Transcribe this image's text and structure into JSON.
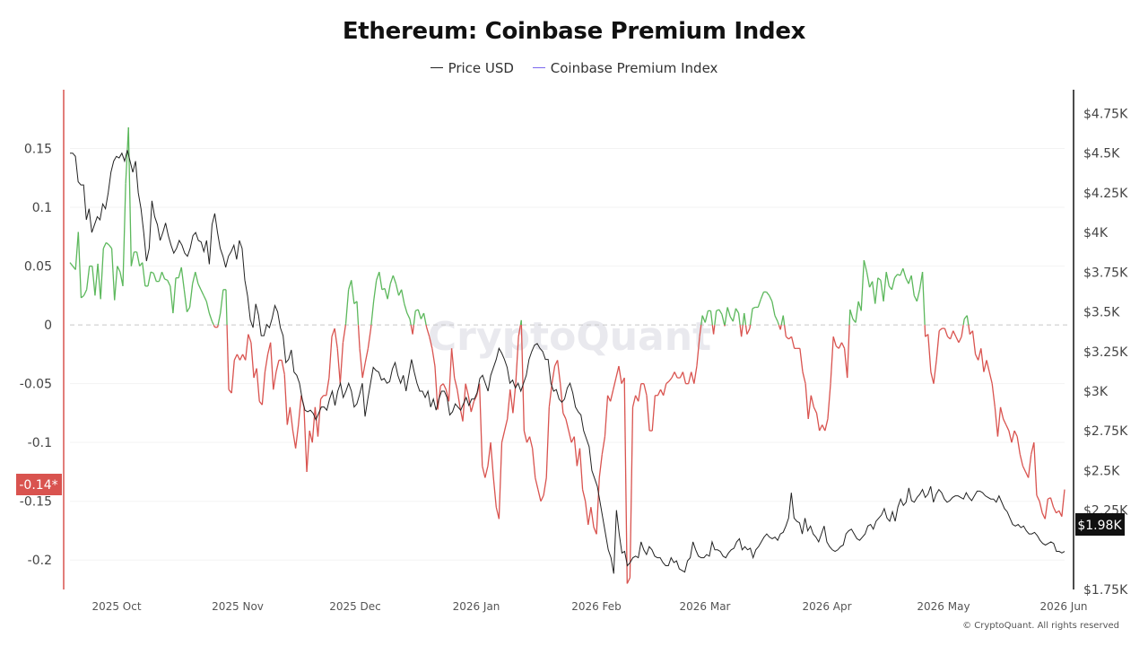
{
  "chart_data": {
    "type": "line",
    "title": "Ethereum: Coinbase Premium Index",
    "legend": [
      {
        "name": "Price USD",
        "color": "#222222"
      },
      {
        "name": "Coinbase Premium Index",
        "color": "#7b68ee"
      }
    ],
    "left_axis": {
      "ticks": [
        "0.15",
        "0.1",
        "0.05",
        "0",
        "-0.05",
        "-0.1",
        "-0.15",
        "-0.2"
      ],
      "tick_values": [
        0.15,
        0.1,
        0.05,
        0,
        -0.05,
        -0.1,
        -0.15,
        -0.2
      ],
      "range": [
        -0.225,
        0.2
      ]
    },
    "right_axis": {
      "ticks": [
        "$4.75K",
        "$4.5K",
        "$4.25K",
        "$4K",
        "$3.75K",
        "$3.5K",
        "$3.25K",
        "$3K",
        "$2.75K",
        "$2.5K",
        "$2.25K",
        "$1.75K"
      ],
      "tick_values": [
        4750,
        4500,
        4250,
        4000,
        3750,
        3500,
        3250,
        3000,
        2750,
        2500,
        2250,
        1750
      ],
      "range": [
        1750,
        4900
      ]
    },
    "x_axis": {
      "labels": [
        "2025 Oct",
        "2025 Nov",
        "2025 Dec",
        "2026 Jan",
        "2026 Feb",
        "2026 Mar",
        "2026 Apr",
        "2026 May",
        "2026 Jun"
      ]
    },
    "current_premium_label": "-0.14*",
    "current_price_label": "$1.98K",
    "colors": {
      "positive": "#5cb85c",
      "negative": "#d9534f",
      "price": "#222222",
      "zero_line": "#c8c8c8"
    },
    "series": [
      {
        "name": "Coinbase Premium Index",
        "values": [
          0.053,
          0.05,
          0.047,
          0.079,
          0.023,
          0.025,
          0.03,
          0.05,
          0.05,
          0.025,
          0.052,
          0.022,
          0.065,
          0.07,
          0.068,
          0.065,
          0.021,
          0.05,
          0.045,
          0.033,
          0.12,
          0.168,
          0.05,
          0.062,
          0.062,
          0.05,
          0.053,
          0.033,
          0.033,
          0.045,
          0.044,
          0.037,
          0.037,
          0.045,
          0.039,
          0.038,
          0.033,
          0.01,
          0.04,
          0.04,
          0.049,
          0.03,
          0.011,
          0.015,
          0.035,
          0.045,
          0.035,
          0.03,
          0.025,
          0.02,
          0.01,
          0.003,
          -0.002,
          -0.002,
          0.01,
          0.03,
          0.03,
          -0.055,
          -0.058,
          -0.03,
          -0.025,
          -0.03,
          -0.025,
          -0.03,
          -0.008,
          -0.015,
          -0.045,
          -0.037,
          -0.065,
          -0.068,
          -0.04,
          -0.025,
          -0.015,
          -0.055,
          -0.04,
          -0.03,
          -0.03,
          -0.042,
          -0.085,
          -0.07,
          -0.09,
          -0.105,
          -0.085,
          -0.06,
          -0.07,
          -0.125,
          -0.09,
          -0.1,
          -0.07,
          -0.095,
          -0.063,
          -0.06,
          -0.06,
          -0.045,
          -0.01,
          -0.003,
          -0.02,
          -0.05,
          -0.015,
          0.001,
          0.03,
          0.038,
          0.018,
          0.02,
          -0.02,
          -0.045,
          -0.032,
          -0.02,
          -0.003,
          0.02,
          0.038,
          0.045,
          0.03,
          0.031,
          0.022,
          0.035,
          0.042,
          0.035,
          0.025,
          0.03,
          0.018,
          0.01,
          0.005,
          -0.008,
          0.012,
          0.013,
          0.005,
          0.01,
          -0.002,
          -0.01,
          -0.02,
          -0.035,
          -0.072,
          -0.052,
          -0.05,
          -0.055,
          -0.065,
          -0.02,
          -0.045,
          -0.055,
          -0.07,
          -0.082,
          -0.05,
          -0.06,
          -0.074,
          -0.065,
          -0.06,
          -0.05,
          -0.12,
          -0.13,
          -0.12,
          -0.1,
          -0.13,
          -0.155,
          -0.165,
          -0.1,
          -0.09,
          -0.08,
          -0.055,
          -0.075,
          -0.05,
          -0.01,
          0.004,
          -0.09,
          -0.1,
          -0.095,
          -0.105,
          -0.13,
          -0.14,
          -0.15,
          -0.145,
          -0.13,
          -0.07,
          -0.05,
          -0.035,
          -0.03,
          -0.05,
          -0.075,
          -0.08,
          -0.09,
          -0.1,
          -0.095,
          -0.12,
          -0.105,
          -0.14,
          -0.15,
          -0.17,
          -0.155,
          -0.172,
          -0.178,
          -0.13,
          -0.11,
          -0.095,
          -0.06,
          -0.065,
          -0.055,
          -0.045,
          -0.035,
          -0.05,
          -0.045,
          -0.22,
          -0.215,
          -0.07,
          -0.06,
          -0.065,
          -0.05,
          -0.05,
          -0.06,
          -0.09,
          -0.09,
          -0.06,
          -0.06,
          -0.055,
          -0.06,
          -0.05,
          -0.048,
          -0.045,
          -0.04,
          -0.045,
          -0.045,
          -0.04,
          -0.05,
          -0.05,
          -0.04,
          -0.05,
          -0.035,
          -0.01,
          0.008,
          0.002,
          0.012,
          0.012,
          -0.008,
          0.012,
          0.013,
          0.009,
          -0.001,
          0.015,
          0.007,
          0.003,
          0.014,
          0.01,
          -0.01,
          0.01,
          -0.008,
          -0.003,
          0.014,
          0.015,
          0.015,
          0.022,
          0.028,
          0.028,
          0.025,
          0.02,
          0.008,
          0.003,
          -0.004,
          0.008,
          -0.01,
          -0.012,
          -0.01,
          -0.02,
          -0.02,
          -0.02,
          -0.04,
          -0.05,
          -0.08,
          -0.06,
          -0.07,
          -0.075,
          -0.09,
          -0.085,
          -0.09,
          -0.08,
          -0.05,
          -0.01,
          -0.018,
          -0.02,
          -0.015,
          -0.02,
          -0.045,
          0.013,
          0.005,
          0.002,
          0.02,
          0.012,
          0.055,
          0.045,
          0.032,
          0.037,
          0.018,
          0.04,
          0.038,
          0.02,
          0.045,
          0.033,
          0.03,
          0.04,
          0.043,
          0.042,
          0.048,
          0.04,
          0.035,
          0.042,
          0.025,
          0.02,
          0.03,
          0.045,
          -0.01,
          -0.008,
          -0.04,
          -0.05,
          -0.03,
          -0.005,
          -0.003,
          -0.003,
          -0.01,
          -0.012,
          -0.005,
          -0.01,
          -0.015,
          -0.01,
          0.005,
          0.008,
          -0.008,
          -0.005,
          -0.025,
          -0.03,
          -0.02,
          -0.04,
          -0.03,
          -0.04,
          -0.05,
          -0.07,
          -0.095,
          -0.07,
          -0.08,
          -0.085,
          -0.09,
          -0.1,
          -0.09,
          -0.095,
          -0.11,
          -0.12,
          -0.125,
          -0.13,
          -0.11,
          -0.1,
          -0.145,
          -0.15,
          -0.16,
          -0.165,
          -0.148,
          -0.147,
          -0.155,
          -0.16,
          -0.158,
          -0.163,
          -0.14
        ]
      },
      {
        "name": "Price USD",
        "values": [
          4500,
          4500,
          4480,
          4320,
          4300,
          4300,
          4080,
          4150,
          4000,
          4050,
          4100,
          4080,
          4180,
          4150,
          4250,
          4380,
          4450,
          4480,
          4470,
          4500,
          4450,
          4520,
          4450,
          4380,
          4450,
          4250,
          4150,
          4000,
          3820,
          3900,
          4200,
          4100,
          4050,
          3950,
          4000,
          4060,
          3980,
          3920,
          3870,
          3900,
          3950,
          3920,
          3870,
          3850,
          3900,
          3980,
          4000,
          3950,
          3940,
          3880,
          3950,
          3800,
          4050,
          4120,
          4000,
          3900,
          3850,
          3780,
          3850,
          3880,
          3920,
          3830,
          3950,
          3900,
          3700,
          3600,
          3450,
          3400,
          3550,
          3480,
          3350,
          3350,
          3420,
          3400,
          3460,
          3540,
          3500,
          3400,
          3350,
          3180,
          3200,
          3260,
          3120,
          3100,
          3050,
          2950,
          2880,
          2870,
          2880,
          2860,
          2820,
          2860,
          2900,
          2900,
          2880,
          2950,
          3000,
          2910,
          3000,
          3050,
          2960,
          3000,
          3050,
          3000,
          2900,
          2920,
          2980,
          3050,
          2840,
          2950,
          3050,
          3150,
          3130,
          3120,
          3070,
          3080,
          3050,
          3060,
          3140,
          3180,
          3100,
          3050,
          3100,
          3000,
          3100,
          3200,
          3120,
          3050,
          3000,
          3000,
          2960,
          3000,
          2900,
          2950,
          2880,
          2950,
          3000,
          3000,
          2960,
          2850,
          2870,
          2920,
          2900,
          2880,
          2920,
          2960,
          2910,
          2950,
          2950,
          2990,
          3080,
          3100,
          3050,
          3000,
          3100,
          3150,
          3200,
          3270,
          3240,
          3200,
          3150,
          3050,
          3070,
          3020,
          3050,
          3000,
          3050,
          3100,
          3200,
          3250,
          3290,
          3300,
          3270,
          3250,
          3200,
          3200,
          3050,
          3000,
          3010,
          2950,
          2930,
          2950,
          3020,
          3050,
          2990,
          2900,
          2870,
          2850,
          2750,
          2700,
          2650,
          2500,
          2450,
          2400,
          2300,
          2200,
          2100,
          2000,
          1950,
          1850,
          2250,
          2100,
          1980,
          1990,
          1900,
          1920,
          1950,
          1960,
          1950,
          2050,
          2000,
          1970,
          2020,
          2000,
          1960,
          1950,
          1950,
          1920,
          1900,
          1900,
          1950,
          1920,
          1930,
          1880,
          1870,
          1860,
          1930,
          1950,
          2050,
          2000,
          1960,
          1950,
          1950,
          1970,
          1960,
          2050,
          2000,
          2000,
          1990,
          1960,
          1950,
          1980,
          2000,
          2010,
          2050,
          2070,
          2000,
          2020,
          2000,
          2010,
          1950,
          2000,
          2020,
          2050,
          2080,
          2100,
          2080,
          2070,
          2080,
          2060,
          2100,
          2110,
          2150,
          2200,
          2360,
          2200,
          2180,
          2170,
          2100,
          2200,
          2120,
          2150,
          2100,
          2080,
          2050,
          2100,
          2150,
          2050,
          2020,
          2000,
          1990,
          2000,
          2020,
          2030,
          2100,
          2120,
          2130,
          2100,
          2070,
          2060,
          2080,
          2100,
          2150,
          2160,
          2130,
          2180,
          2200,
          2220,
          2260,
          2200,
          2180,
          2240,
          2180,
          2270,
          2320,
          2280,
          2300,
          2390,
          2310,
          2300,
          2330,
          2350,
          2380,
          2330,
          2350,
          2400,
          2300,
          2350,
          2380,
          2360,
          2320,
          2300,
          2310,
          2330,
          2340,
          2340,
          2330,
          2320,
          2360,
          2330,
          2310,
          2340,
          2370,
          2370,
          2360,
          2340,
          2330,
          2320,
          2320,
          2300,
          2340,
          2300,
          2260,
          2240,
          2200,
          2160,
          2150,
          2160,
          2140,
          2150,
          2120,
          2100,
          2100,
          2110,
          2090,
          2060,
          2040,
          2030,
          2040,
          2050,
          2040,
          1990,
          1990,
          1980,
          1990
        ]
      }
    ]
  },
  "watermark": "CryptoQuant",
  "footer": "© CryptoQuant. All rights reserved"
}
